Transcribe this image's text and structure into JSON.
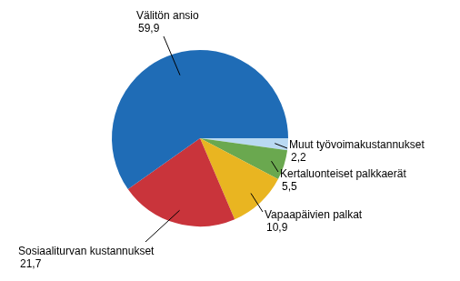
{
  "chart_data": {
    "type": "pie",
    "categories": [
      "Muut työvoimakustannukset",
      "Kertaluonteiset palkkaerät",
      "Vapaapäivien palkat",
      "Sosiaaliturvan kustannukset",
      "Välitön ansio"
    ],
    "values": [
      2.2,
      5.5,
      10.9,
      21.7,
      59.9
    ],
    "value_labels": [
      "2,2",
      "5,5",
      "10,9",
      "21,7",
      "59,9"
    ],
    "colors": [
      "#b9d9f2",
      "#6aa84f",
      "#e9b521",
      "#c9343b",
      "#1f6cb6"
    ],
    "data_labels": true,
    "legend": false
  }
}
